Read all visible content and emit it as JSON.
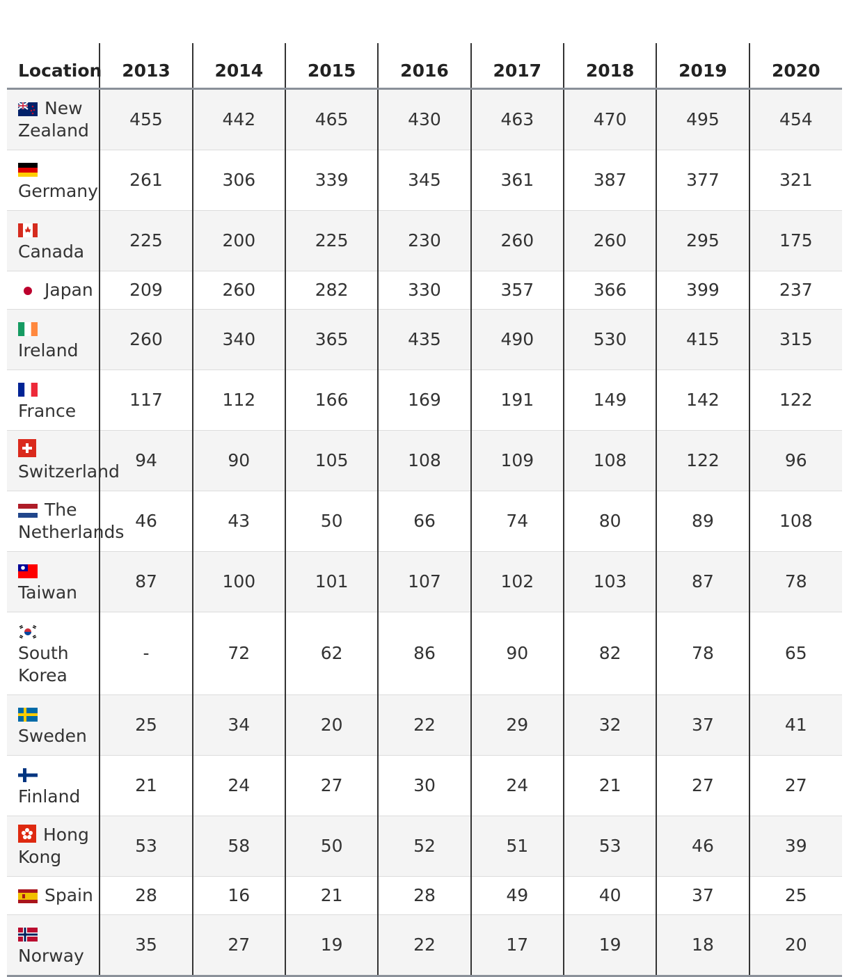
{
  "table": {
    "headers": [
      "Location",
      "2013",
      "2014",
      "2015",
      "2016",
      "2017",
      "2018",
      "2019",
      "2020"
    ],
    "rows": [
      [
        "New Zealand",
        455,
        442,
        465,
        430,
        463,
        470,
        495,
        454
      ],
      [
        "Germany",
        261,
        306,
        339,
        345,
        361,
        387,
        377,
        321
      ],
      [
        "Canada",
        225,
        200,
        225,
        230,
        260,
        260,
        295,
        175
      ],
      [
        "Japan",
        209,
        260,
        282,
        330,
        357,
        366,
        399,
        237
      ],
      [
        "Ireland",
        260,
        340,
        365,
        435,
        490,
        530,
        415,
        315
      ],
      [
        "France",
        117,
        112,
        166,
        169,
        191,
        149,
        142,
        122
      ],
      [
        "Switzerland",
        94,
        90,
        105,
        108,
        109,
        108,
        122,
        96
      ],
      [
        "The Netherlands",
        46,
        43,
        50,
        66,
        74,
        80,
        89,
        108
      ],
      [
        "Taiwan",
        87,
        100,
        101,
        107,
        102,
        103,
        87,
        78
      ],
      [
        "South Korea",
        "-",
        72,
        62,
        86,
        90,
        82,
        78,
        65
      ],
      [
        "Sweden",
        25,
        34,
        20,
        22,
        29,
        32,
        37,
        41
      ],
      [
        "Finland",
        21,
        24,
        27,
        30,
        24,
        21,
        27,
        27
      ],
      [
        "Hong Kong",
        53,
        58,
        50,
        52,
        51,
        53,
        46,
        39
      ],
      [
        "Spain",
        28,
        16,
        21,
        28,
        49,
        40,
        37,
        25
      ],
      [
        "Norway",
        35,
        27,
        19,
        22,
        17,
        19,
        18,
        20
      ]
    ]
  }
}
